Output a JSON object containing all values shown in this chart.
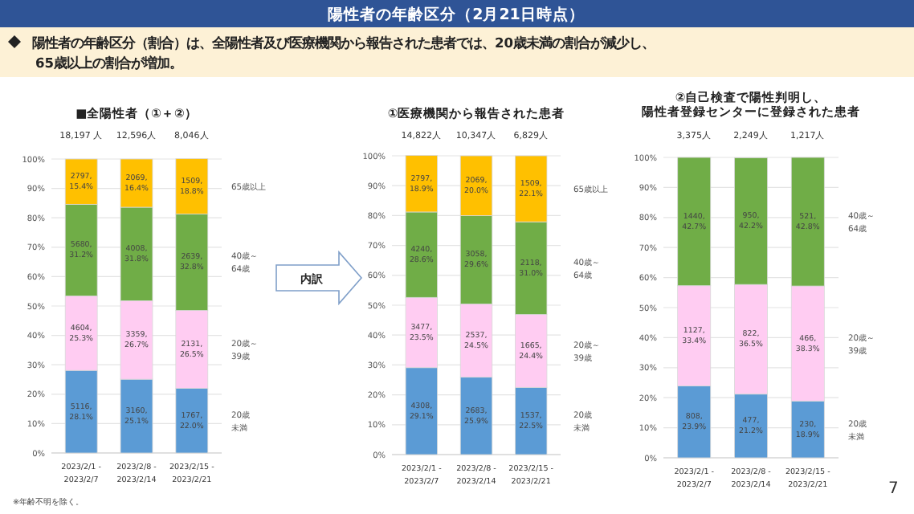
{
  "chart_data": [
    {
      "type": "bar",
      "stacked": true,
      "title": "■全陽性者（①＋②）",
      "categories": [
        "2023/2/1 - 2023/2/7",
        "2023/2/8 - 2023/2/14",
        "2023/2/15 - 2023/2/21"
      ],
      "ylim": [
        0,
        100
      ],
      "yticks": [
        {
          "value": 0,
          "label": "0%"
        },
        {
          "value": 10,
          "label": "10%"
        },
        {
          "value": 20,
          "label": "20%"
        },
        {
          "value": 30,
          "label": "30%"
        },
        {
          "value": 40,
          "label": "40%"
        },
        {
          "value": 50,
          "label": "50%"
        },
        {
          "value": 60,
          "label": "60%"
        },
        {
          "value": 70,
          "label": "70%"
        },
        {
          "value": 80,
          "label": "80%"
        },
        {
          "value": 90,
          "label": "90%"
        },
        {
          "value": 100,
          "label": "100%"
        }
      ],
      "grid": "y",
      "legend": "right",
      "annotations": [
        "陽性者の年齢区分（2月21日時点）",
        "陽性者の年齢区分（割合）は、全陽性者及び医療機関から報告された患者では、20歳未満の割合が減少し、65歳以上の割合が増加。",
        "内訳",
        "※年齢不明を除く。",
        "7",
        "18,197 人",
        "12,596人",
        "8,046人"
      ],
      "series": [
        {
          "name": "20歳未満",
          "color": "#5b9bd5",
          "values": [
            28.1,
            25.1,
            22.0
          ],
          "value_labels": [
            "5116, 28.1%",
            "3160, 25.1%",
            "1767, 22.0%"
          ]
        },
        {
          "name": "20歳～39歳",
          "color": "#ffccf2",
          "values": [
            25.3,
            26.7,
            26.5
          ],
          "value_labels": [
            "4604, 25.3%",
            "3359, 26.7%",
            "2131, 26.5%"
          ]
        },
        {
          "name": "40歳～64歳",
          "color": "#70ad47",
          "values": [
            31.2,
            31.8,
            32.8
          ],
          "value_labels": [
            "5680, 31.2%",
            "4008, 31.8%",
            "2639, 32.8%"
          ]
        },
        {
          "name": "65歳以上",
          "color": "#ffc000",
          "values": [
            15.4,
            16.4,
            18.8
          ],
          "value_labels": [
            "2797, 15.4%",
            "2069, 16.4%",
            "1509, 18.8%"
          ]
        }
      ]
    },
    {
      "type": "bar",
      "stacked": true,
      "title": "①医療機関から報告された患者",
      "categories": [
        "2023/2/1 - 2023/2/7",
        "2023/2/8 - 2023/2/14",
        "2023/2/15 - 2023/2/21"
      ],
      "ylim": [
        0,
        100
      ],
      "yticks": [
        {
          "value": 0,
          "label": "0%"
        },
        {
          "value": 10,
          "label": "10%"
        },
        {
          "value": 20,
          "label": "20%"
        },
        {
          "value": 30,
          "label": "30%"
        },
        {
          "value": 40,
          "label": "40%"
        },
        {
          "value": 50,
          "label": "50%"
        },
        {
          "value": 60,
          "label": "60%"
        },
        {
          "value": 70,
          "label": "70%"
        },
        {
          "value": 80,
          "label": "80%"
        },
        {
          "value": 90,
          "label": "90%"
        },
        {
          "value": 100,
          "label": "100%"
        }
      ],
      "grid": "y",
      "legend": "right",
      "annotations": [
        "14,822人",
        "10,347人",
        "6,829人"
      ],
      "series": [
        {
          "name": "20歳未満",
          "color": "#5b9bd5",
          "values": [
            29.1,
            25.9,
            22.5
          ],
          "value_labels": [
            "4308, 29.1%",
            "2683, 25.9%",
            "1537, 22.5%"
          ]
        },
        {
          "name": "20歳～39歳",
          "color": "#ffccf2",
          "values": [
            23.5,
            24.5,
            24.4
          ],
          "value_labels": [
            "3477, 23.5%",
            "2537, 24.5%",
            "1665, 24.4%"
          ]
        },
        {
          "name": "40歳～64歳",
          "color": "#70ad47",
          "values": [
            28.6,
            29.6,
            31.0
          ],
          "value_labels": [
            "4240, 28.6%",
            "3058, 29.6%",
            "2118, 31.0%"
          ]
        },
        {
          "name": "65歳以上",
          "color": "#ffc000",
          "values": [
            18.9,
            20.0,
            22.1
          ],
          "value_labels": [
            "2797, 18.9%",
            "2069, 20.0%",
            "1509, 22.1%"
          ]
        }
      ]
    },
    {
      "type": "bar",
      "stacked": true,
      "title": "②自己検査で陽性判明し、陽性者登録センターに登録された患者",
      "categories": [
        "2023/2/1 - 2023/2/7",
        "2023/2/8 - 2023/2/14",
        "2023/2/15 - 2023/2/21"
      ],
      "ylim": [
        0,
        100
      ],
      "yticks": [
        {
          "value": 0,
          "label": "0%"
        },
        {
          "value": 10,
          "label": "10%"
        },
        {
          "value": 20,
          "label": "20%"
        },
        {
          "value": 30,
          "label": "30%"
        },
        {
          "value": 40,
          "label": "40%"
        },
        {
          "value": 50,
          "label": "50%"
        },
        {
          "value": 60,
          "label": "60%"
        },
        {
          "value": 70,
          "label": "70%"
        },
        {
          "value": 80,
          "label": "80%"
        },
        {
          "value": 90,
          "label": "90%"
        },
        {
          "value": 100,
          "label": "100%"
        }
      ],
      "grid": "y",
      "legend": "right",
      "annotations": [
        "3,375人",
        "2,249人",
        "1,217人"
      ],
      "series": [
        {
          "name": "20歳未満",
          "color": "#5b9bd5",
          "values": [
            23.9,
            21.2,
            18.9
          ],
          "value_labels": [
            "808, 23.9%",
            "477, 21.2%",
            "230, 18.9%"
          ]
        },
        {
          "name": "20歳～39歳",
          "color": "#ffccf2",
          "values": [
            33.4,
            36.5,
            38.3
          ],
          "value_labels": [
            "1127, 33.4%",
            "822, 36.5%",
            "466, 38.3%"
          ]
        },
        {
          "name": "40歳～64歳",
          "color": "#70ad47",
          "values": [
            42.7,
            42.2,
            42.8
          ],
          "value_labels": [
            "1440, 42.7%",
            "950, 42.2%",
            "521, 42.8%"
          ]
        }
      ]
    }
  ]
}
